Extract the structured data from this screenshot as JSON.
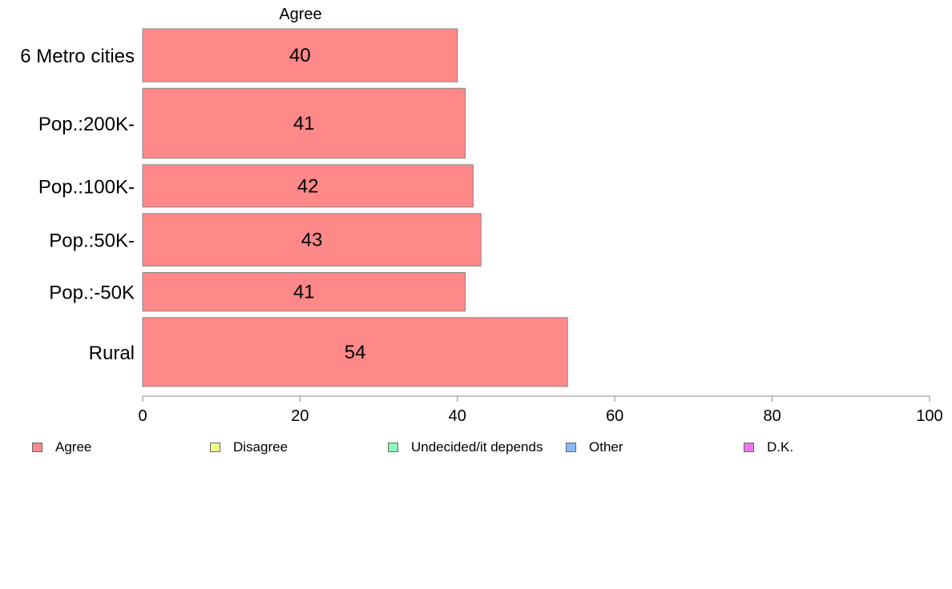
{
  "chart_data": {
    "type": "bar",
    "orientation": "horizontal",
    "title": "Agree",
    "categories": [
      "6 Metro cities",
      "Pop.:200K-",
      "Pop.:100K-",
      "Pop.:50K-",
      "Pop.:-50K",
      "Rural"
    ],
    "series": [
      {
        "name": "Agree",
        "values": [
          40,
          41,
          42,
          43,
          41,
          54
        ],
        "color": "#ff8888"
      }
    ],
    "value_labels": [
      "40",
      "41",
      "42",
      "43",
      "41",
      "54"
    ],
    "bar_weights": [
      1.0,
      1.32,
      0.8,
      0.99,
      0.73,
      1.3
    ],
    "xlim": [
      0,
      100
    ],
    "xticks": [
      0,
      20,
      40,
      60,
      80,
      100
    ],
    "grid": false,
    "legend_position": "bottom"
  },
  "legend": [
    {
      "label": "Agree",
      "color": "#ff8888"
    },
    {
      "label": "Disagree",
      "color": "#eeff88"
    },
    {
      "label": "Undecided/it depends",
      "color": "#88ffbb"
    },
    {
      "label": "Other",
      "color": "#88bbff"
    },
    {
      "label": "D.K.",
      "color": "#ee77ee"
    }
  ]
}
